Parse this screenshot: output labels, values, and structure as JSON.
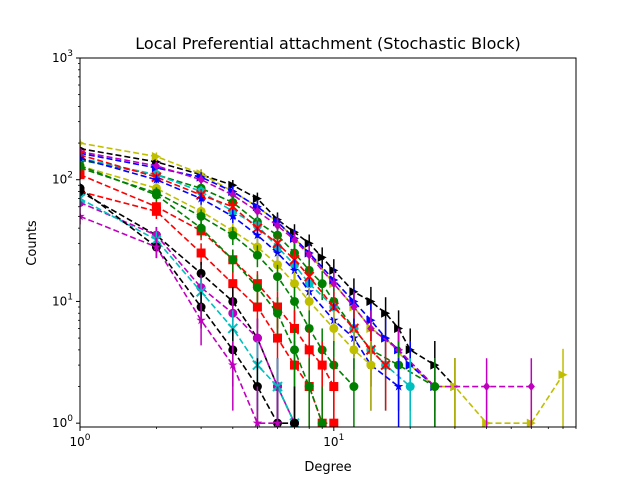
{
  "chart_data": {
    "type": "scatter",
    "title": "Local Preferential attachment (Stochastic Block)",
    "xlabel": "Degree",
    "ylabel": "Counts",
    "xscale": "log",
    "yscale": "log",
    "xlim": [
      1,
      90
    ],
    "ylim": [
      0.93,
      1000
    ],
    "grid": false,
    "xticks": [
      {
        "base": "10",
        "exp": "0",
        "value": 1
      },
      {
        "base": "10",
        "exp": "1",
        "value": 10
      }
    ],
    "yticks": [
      {
        "base": "10",
        "exp": "0",
        "value": 1
      },
      {
        "base": "10",
        "exp": "1",
        "value": 10
      },
      {
        "base": "10",
        "exp": "2",
        "value": 100
      },
      {
        "base": "10",
        "exp": "3",
        "value": 1000
      }
    ],
    "series": [
      {
        "color": "#000000",
        "marker": "right",
        "x": [
          1,
          2,
          3,
          4,
          5,
          6,
          7,
          8,
          9,
          10,
          12,
          14,
          16,
          18,
          20,
          25,
          30
        ],
        "y": [
          180,
          140,
          110,
          90,
          70,
          47,
          37,
          30,
          23,
          18,
          12,
          10,
          8,
          6,
          4,
          3,
          2
        ]
      },
      {
        "color": "#bfbf00",
        "marker": "right",
        "x": [
          1,
          2,
          3,
          4,
          5,
          6,
          7,
          8,
          10,
          12,
          14,
          16,
          20,
          25,
          30,
          40,
          60,
          80
        ],
        "y": [
          200,
          155,
          112,
          80,
          60,
          45,
          33,
          25,
          14,
          9,
          6,
          5,
          3,
          2,
          2,
          1,
          1,
          2.5
        ]
      },
      {
        "color": "#0000ff",
        "marker": "right",
        "x": [
          1,
          2,
          3,
          4,
          5,
          6,
          7,
          8,
          10,
          12,
          14,
          16,
          18,
          20,
          25
        ],
        "y": [
          165,
          125,
          105,
          80,
          60,
          45,
          33,
          25,
          15,
          10,
          7,
          5,
          4,
          3,
          2
        ]
      },
      {
        "color": "#bf00bf",
        "marker": "diamond",
        "x": [
          1,
          2,
          3,
          4,
          5,
          6,
          7,
          8,
          10,
          12,
          14,
          18,
          25,
          40,
          60
        ],
        "y": [
          170,
          130,
          100,
          75,
          55,
          42,
          32,
          24,
          14,
          9,
          6,
          4,
          2,
          2,
          2
        ]
      },
      {
        "color": "#008000",
        "marker": "circle",
        "x": [
          1,
          2,
          3,
          4,
          5,
          6,
          7,
          8,
          9,
          10,
          12,
          14,
          18,
          25
        ],
        "y": [
          145,
          110,
          85,
          65,
          45,
          35,
          25,
          18,
          14,
          10,
          6,
          4,
          3,
          2
        ]
      },
      {
        "color": "#00bfbf",
        "marker": "circle",
        "x": [
          1,
          2,
          3,
          4,
          5,
          6,
          7,
          8,
          10,
          12,
          14,
          16,
          20
        ],
        "y": [
          150,
          110,
          80,
          55,
          42,
          28,
          20,
          14,
          9,
          6,
          4,
          3,
          2
        ]
      },
      {
        "color": "#ff0000",
        "marker": "cross",
        "x": [
          1,
          2,
          3,
          4,
          5,
          6,
          7,
          8,
          10,
          12,
          14,
          16
        ],
        "y": [
          160,
          105,
          75,
          60,
          40,
          30,
          22,
          16,
          9,
          6,
          4,
          3
        ]
      },
      {
        "color": "#0000ff",
        "marker": "star",
        "x": [
          1,
          2,
          3,
          4,
          5,
          6,
          7,
          8,
          10,
          12,
          14,
          18
        ],
        "y": [
          150,
          100,
          70,
          50,
          35,
          25,
          18,
          12,
          7,
          5,
          3,
          2
        ]
      },
      {
        "color": "#bfbf00",
        "marker": "circle",
        "x": [
          1,
          2,
          3,
          4,
          5,
          6,
          7,
          8,
          10,
          12,
          14
        ],
        "y": [
          130,
          85,
          55,
          38,
          28,
          20,
          14,
          10,
          6,
          4,
          3
        ]
      },
      {
        "color": "#008000",
        "marker": "circle",
        "x": [
          1,
          2,
          3,
          4,
          5,
          6,
          7,
          8,
          9,
          10,
          12
        ],
        "y": [
          125,
          78,
          50,
          35,
          24,
          16,
          10,
          6,
          4,
          3,
          2
        ]
      },
      {
        "color": "#ff0000",
        "marker": "square",
        "x": [
          1,
          2,
          3,
          4,
          5,
          6,
          7,
          8,
          9,
          10
        ],
        "y": [
          110,
          60,
          38,
          22,
          14,
          9,
          6,
          4,
          3,
          2
        ]
      },
      {
        "color": "#ff0000",
        "marker": "square",
        "x": [
          1,
          2,
          3,
          4,
          5,
          6,
          7,
          8,
          9,
          10
        ],
        "y": [
          80,
          55,
          25,
          14,
          9,
          5,
          3,
          2,
          1,
          1
        ]
      },
      {
        "color": "#008000",
        "marker": "circle",
        "x": [
          1,
          2,
          3,
          4,
          5,
          6,
          7,
          8,
          9
        ],
        "y": [
          130,
          75,
          40,
          22,
          13,
          8,
          4,
          2,
          1
        ]
      },
      {
        "color": "#000000",
        "marker": "circle",
        "x": [
          1,
          2,
          3,
          4,
          5,
          6,
          7
        ],
        "y": [
          80,
          35,
          17,
          10,
          5,
          2,
          1
        ]
      },
      {
        "color": "#bf00bf",
        "marker": "circle",
        "x": [
          1,
          2,
          3,
          4,
          5,
          6,
          7
        ],
        "y": [
          65,
          35,
          13,
          8,
          5,
          2,
          1
        ]
      },
      {
        "color": "#00bfbf",
        "marker": "cross",
        "x": [
          1,
          2,
          3,
          4,
          5,
          6,
          7
        ],
        "y": [
          70,
          32,
          12,
          6,
          3,
          2,
          1
        ]
      },
      {
        "color": "#000000",
        "marker": "circle",
        "x": [
          1,
          2,
          3,
          4,
          5,
          6,
          7
        ],
        "y": [
          85,
          28,
          9,
          4,
          2,
          1,
          1
        ]
      },
      {
        "color": "#bf00bf",
        "marker": "star",
        "x": [
          1,
          2,
          3,
          4,
          5,
          6
        ],
        "y": [
          50,
          28,
          7,
          3,
          1,
          1
        ]
      }
    ]
  }
}
